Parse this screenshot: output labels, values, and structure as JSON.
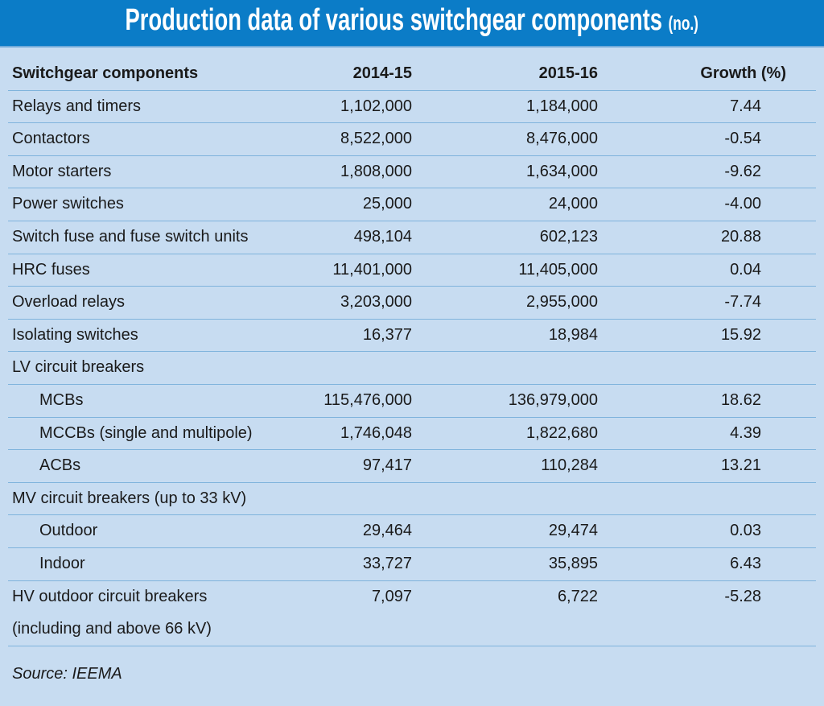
{
  "title": "Production data of various switchgear components",
  "title_unit": "(no.)",
  "colors": {
    "header_band": "#0b7cc7",
    "background": "#c7dcf1",
    "rule": "#7fb3dc"
  },
  "chart_data": {
    "type": "table",
    "columns": [
      "Switchgear components",
      "2014-15",
      "2015-16",
      "Growth (%)"
    ],
    "rows": [
      {
        "name": "Relays and timers",
        "y2014_15": "1,102,000",
        "y2015_16": "1,184,000",
        "growth": "7.44"
      },
      {
        "name": "Contactors",
        "y2014_15": "8,522,000",
        "y2015_16": "8,476,000",
        "growth": "-0.54"
      },
      {
        "name": "Motor starters",
        "y2014_15": "1,808,000",
        "y2015_16": "1,634,000",
        "growth": "-9.62"
      },
      {
        "name": "Power switches",
        "y2014_15": "25,000",
        "y2015_16": "24,000",
        "growth": "-4.00"
      },
      {
        "name": "Switch fuse and fuse switch units",
        "y2014_15": "498,104",
        "y2015_16": "602,123",
        "growth": "20.88"
      },
      {
        "name": "HRC fuses",
        "y2014_15": "11,401,000",
        "y2015_16": "11,405,000",
        "growth": "0.04"
      },
      {
        "name": "Overload relays",
        "y2014_15": "3,203,000",
        "y2015_16": "2,955,000",
        "growth": "-7.74"
      },
      {
        "name": "Isolating switches",
        "y2014_15": "16,377",
        "y2015_16": "18,984",
        "growth": "15.92"
      },
      {
        "name": "LV circuit breakers",
        "y2014_15": "",
        "y2015_16": "",
        "growth": "",
        "group": true
      },
      {
        "name": "MCBs",
        "y2014_15": "115,476,000",
        "y2015_16": "136,979,000",
        "growth": "18.62",
        "sub": true
      },
      {
        "name": "MCCBs (single and multipole)",
        "y2014_15": "1,746,048",
        "y2015_16": "1,822,680",
        "growth": "4.39",
        "sub": true
      },
      {
        "name": "ACBs",
        "y2014_15": "97,417",
        "y2015_16": "110,284",
        "growth": "13.21",
        "sub": true
      },
      {
        "name": "MV circuit breakers (up to 33 kV)",
        "y2014_15": "",
        "y2015_16": "",
        "growth": "",
        "group": true
      },
      {
        "name": "Outdoor",
        "y2014_15": "29,464",
        "y2015_16": "29,474",
        "growth": "0.03",
        "sub": true
      },
      {
        "name": "Indoor",
        "y2014_15": "33,727",
        "y2015_16": "35,895",
        "growth": "6.43",
        "sub": true
      },
      {
        "name": "HV outdoor circuit breakers",
        "name_line2": "(including and above 66 kV)",
        "y2014_15": "7,097",
        "y2015_16": "6,722",
        "growth": "-5.28"
      }
    ]
  },
  "source": "Source: IEEMA"
}
